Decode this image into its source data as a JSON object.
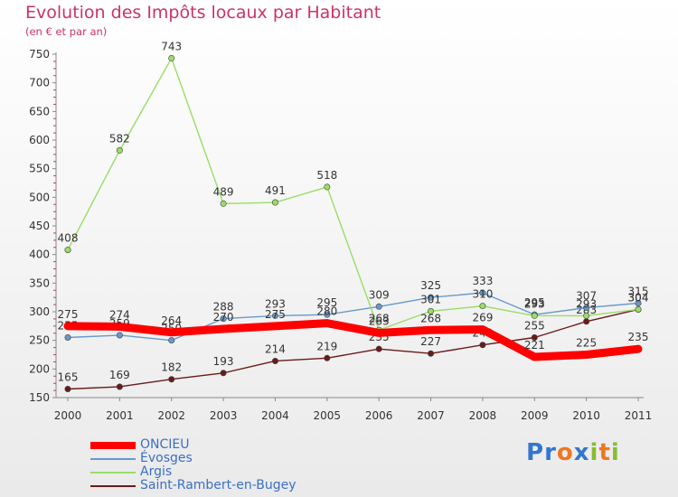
{
  "chart_data": {
    "type": "line",
    "title": "Evolution des Impôts locaux par Habitant",
    "subtitle": "(en € et par an)",
    "xlabel": "",
    "ylabel": "",
    "categories": [
      "2000",
      "2001",
      "2002",
      "2003",
      "2004",
      "2005",
      "2006",
      "2007",
      "2008",
      "2009",
      "2010",
      "2011"
    ],
    "ylim": [
      150,
      750
    ],
    "yticks": [
      150,
      200,
      250,
      300,
      350,
      400,
      450,
      500,
      550,
      600,
      650,
      700,
      750
    ],
    "grid": false,
    "legend_position": "bottom-left",
    "series": [
      {
        "name": "ONCIEU",
        "color": "#ff0000",
        "values": [
          275,
          274,
          264,
          270,
          275,
          280,
          263,
          268,
          269,
          221,
          225,
          235
        ],
        "labels": [
          "275",
          "274",
          "264",
          "270",
          "275",
          "280",
          "263",
          "268",
          "269",
          "221",
          "225",
          "235"
        ]
      },
      {
        "name": "Évosges",
        "color": "#6699cc",
        "values": [
          255,
          259,
          250,
          288,
          293,
          295,
          309,
          325,
          333,
          295,
          307,
          315
        ],
        "labels": [
          "255",
          "259",
          "250",
          "288",
          "293",
          "295",
          "309",
          "325",
          "333",
          "295",
          "307",
          "315"
        ]
      },
      {
        "name": "Argis",
        "color": "#99dd66",
        "values": [
          408,
          582,
          743,
          489,
          491,
          518,
          268,
          301,
          310,
          293,
          293,
          304
        ],
        "labels": [
          "408",
          "582",
          "743",
          "489",
          "491",
          "518",
          "268",
          "301",
          "310",
          "293",
          "293",
          "304"
        ]
      },
      {
        "name": "Saint-Rambert-en-Bugey",
        "color": "#6b1a1a",
        "values": [
          165,
          169,
          182,
          193,
          214,
          219,
          235,
          227,
          242,
          255,
          283,
          304
        ],
        "labels": [
          "165",
          "169",
          "182",
          "193",
          "214",
          "219",
          "235",
          "227",
          "242",
          "255",
          "283",
          "304"
        ]
      }
    ]
  },
  "branding": {
    "letters": [
      {
        "char": "P",
        "color": "#3377cc"
      },
      {
        "char": "r",
        "color": "#3377cc"
      },
      {
        "char": "o",
        "color": "#ee7722"
      },
      {
        "char": "x",
        "color": "#3377cc"
      },
      {
        "char": "i",
        "color": "#88bb33"
      },
      {
        "char": "t",
        "color": "#ee7722"
      },
      {
        "char": "i",
        "color": "#88bb33"
      }
    ]
  }
}
